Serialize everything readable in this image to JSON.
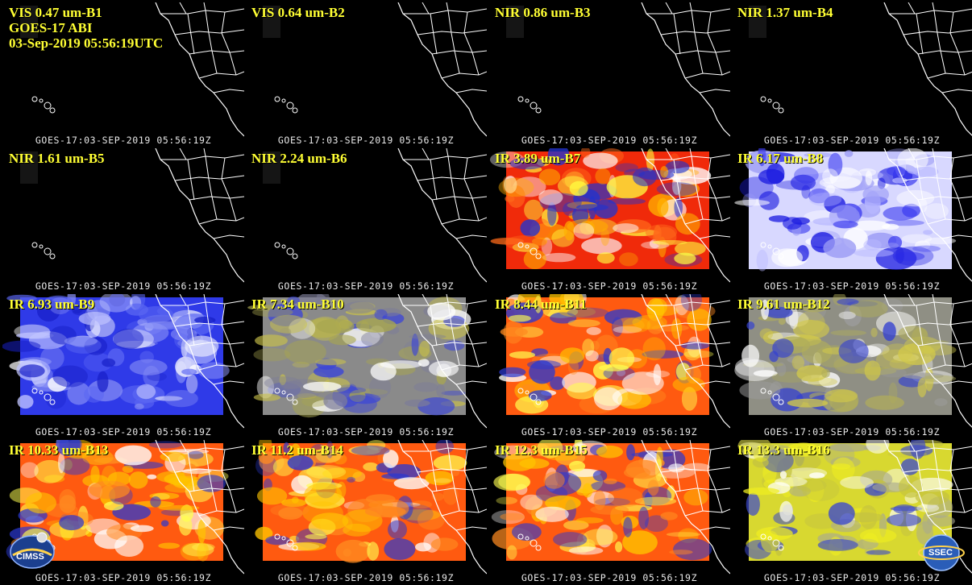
{
  "header": {
    "instrument": "GOES-17 ABI",
    "datetime": "03-Sep-2019 05:56:19UTC"
  },
  "panels": [
    {
      "label": "VIS 0.47 um-B1",
      "stamp": "GOES-17:03-SEP-2019 05:56:19Z",
      "palette": "dark"
    },
    {
      "label": "VIS 0.64 um-B2",
      "stamp": "GOES-17:03-SEP-2019 05:56:19Z",
      "palette": "dark"
    },
    {
      "label": "NIR 0.86 um-B3",
      "stamp": "GOES-17:03-SEP-2019 05:56:19Z",
      "palette": "dark"
    },
    {
      "label": "NIR 1.37 um-B4",
      "stamp": "GOES-17:03-SEP-2019 05:56:19Z",
      "palette": "dark"
    },
    {
      "label": "NIR 1.61 um-B5",
      "stamp": "GOES-17:03-SEP-2019 05:56:19Z",
      "palette": "dark"
    },
    {
      "label": "NIR 2.24 um-B6",
      "stamp": "GOES-17:03-SEP-2019 05:56:19Z",
      "palette": "dark"
    },
    {
      "label": "IR 3.89 um-B7",
      "stamp": "GOES-17:03-SEP-2019 05:56:19Z",
      "palette": "red"
    },
    {
      "label": "IR 6.17 um-B8",
      "stamp": "GOES-17:03-SEP-2019 05:56:19Z",
      "palette": "wv_light"
    },
    {
      "label": "IR 6.93 um-B9",
      "stamp": "GOES-17:03-SEP-2019 05:56:19Z",
      "palette": "wv_blue"
    },
    {
      "label": "IR 7.34 um-B10",
      "stamp": "GOES-17:03-SEP-2019 05:56:19Z",
      "palette": "wv_olive"
    },
    {
      "label": "IR 8.44 um-B11",
      "stamp": "GOES-17:03-SEP-2019 05:56:19Z",
      "palette": "orange"
    },
    {
      "label": "IR 9.61 um-B12",
      "stamp": "GOES-17:03-SEP-2019 05:56:19Z",
      "palette": "gray_olive"
    },
    {
      "label": "IR 10.33 um-B13",
      "stamp": "GOES-17:03-SEP-2019 05:56:19Z",
      "palette": "orange"
    },
    {
      "label": "IR 11.2 um-B14",
      "stamp": "GOES-17:03-SEP-2019 05:56:19Z",
      "palette": "orange"
    },
    {
      "label": "IR 12.3 um-B15",
      "stamp": "GOES-17:03-SEP-2019 05:56:19Z",
      "palette": "orange"
    },
    {
      "label": "IR 13.3 um-B16",
      "stamp": "GOES-17:03-SEP-2019 05:56:19Z",
      "palette": "yellow"
    }
  ],
  "logos": {
    "left": "CIMSS",
    "right": "SSEC"
  },
  "colors": {
    "label": "#ffff33",
    "stamp": "#e8e8e8",
    "coast": "#ffffff",
    "background": "#000000"
  }
}
